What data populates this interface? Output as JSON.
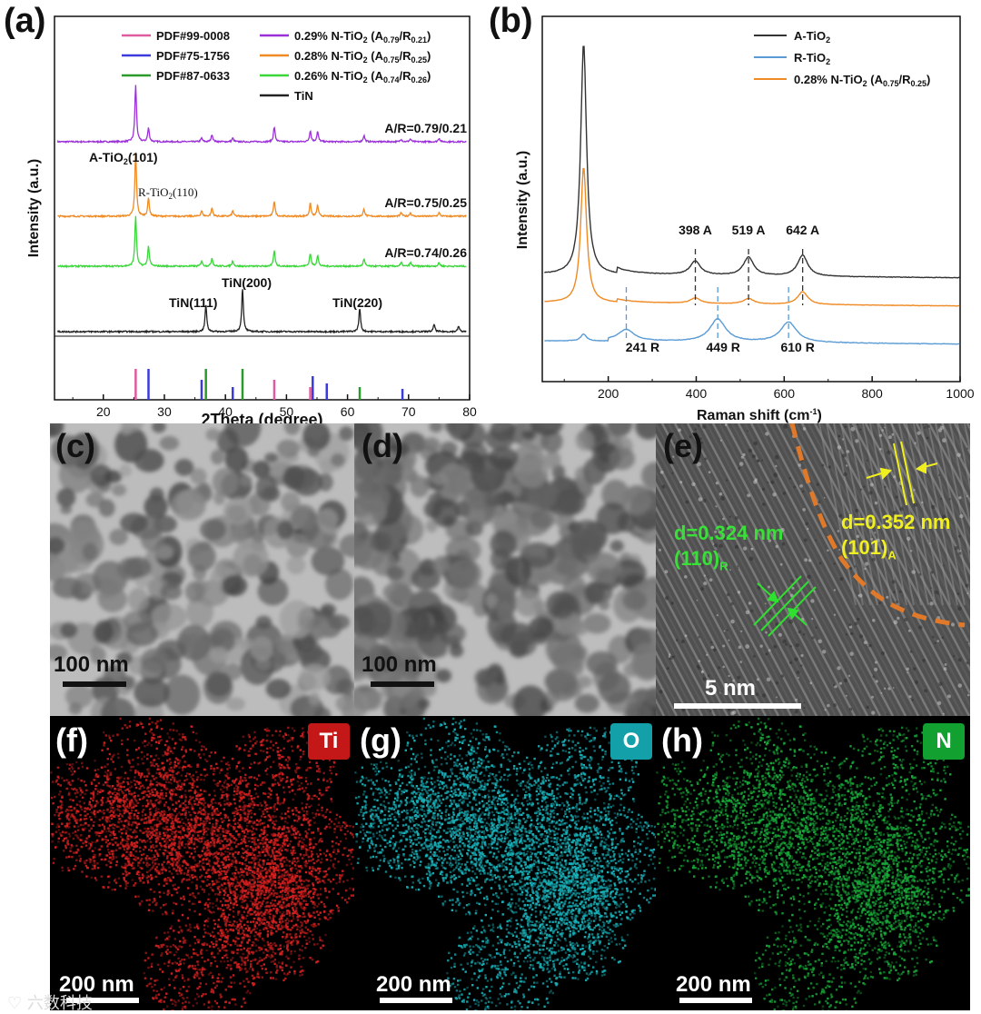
{
  "panels": {
    "a": "(a)",
    "b": "(b)",
    "c": "(c)",
    "d": "(d)",
    "e": "(e)",
    "f": "(f)",
    "g": "(g)",
    "h": "(h)"
  },
  "chart_data": [
    {
      "type": "line",
      "panel": "(a)",
      "xlabel": "2Theta (degree)",
      "ylabel": "Intensity (a.u.)",
      "xlim": [
        12,
        80
      ],
      "xticks": [
        20,
        30,
        40,
        50,
        60,
        70,
        80
      ],
      "legend": [
        {
          "name": "PDF#99-0008",
          "color": "#e05aa0"
        },
        {
          "name": "PDF#75-1756",
          "color": "#3b3bdc"
        },
        {
          "name": "PDF#87-0633",
          "color": "#2a9a2a"
        },
        {
          "name": "0.29% N-TiO",
          "sub2": "2",
          "mid": " (A",
          "sub_a": "0.79",
          "sep": "/R",
          "sub_r": "0.21",
          "end": ")",
          "color": "#9b30d8"
        },
        {
          "name": "0.28% N-TiO",
          "sub2": "2",
          "mid": " (A",
          "sub_a": "0.75",
          "sep": "/R",
          "sub_r": "0.25",
          "end": ")",
          "color": "#f08a24"
        },
        {
          "name": "0.26% N-TiO",
          "sub2": "2",
          "mid": " (A",
          "sub_a": "0.74",
          "sep": "/R",
          "sub_r": "0.26",
          "end": ")",
          "color": "#3ad63a"
        },
        {
          "name": "TiN",
          "color": "#222222"
        }
      ],
      "series": [
        {
          "name": "0.29% N-TiO2",
          "color": "#9b30d8",
          "baseline": 0.0,
          "ratio_label": "A/R=0.79/0.21",
          "peaks": [
            [
              25.3,
              62
            ],
            [
              27.4,
              15
            ],
            [
              36.1,
              4
            ],
            [
              37.8,
              8
            ],
            [
              41.2,
              4
            ],
            [
              48.0,
              16
            ],
            [
              53.9,
              12
            ],
            [
              55.1,
              11
            ],
            [
              62.7,
              7
            ],
            [
              68.8,
              3
            ],
            [
              70.3,
              3
            ],
            [
              75.0,
              4
            ]
          ]
        },
        {
          "name": "0.28% N-TiO2",
          "color": "#f08a24",
          "baseline": 0.0,
          "ratio_label": "A/R=0.75/0.25",
          "peaks": [
            [
              25.3,
              70
            ],
            [
              27.4,
              20
            ],
            [
              36.1,
              6
            ],
            [
              37.8,
              9
            ],
            [
              41.2,
              6
            ],
            [
              48.0,
              17
            ],
            [
              53.9,
              14
            ],
            [
              55.1,
              12
            ],
            [
              62.7,
              8
            ],
            [
              68.8,
              4
            ],
            [
              70.3,
              4
            ],
            [
              75.0,
              4
            ]
          ]
        },
        {
          "name": "0.26% N-TiO2",
          "color": "#3ad63a",
          "baseline": 0.0,
          "ratio_label": "A/R=0.74/0.26",
          "peaks": [
            [
              25.3,
              55
            ],
            [
              27.4,
              22
            ],
            [
              36.1,
              6
            ],
            [
              37.8,
              9
            ],
            [
              41.2,
              6
            ],
            [
              48.0,
              17
            ],
            [
              53.9,
              14
            ],
            [
              55.1,
              12
            ],
            [
              62.7,
              8
            ],
            [
              68.8,
              4
            ],
            [
              70.3,
              4
            ],
            [
              75.0,
              4
            ]
          ]
        },
        {
          "name": "TiN",
          "color": "#222222",
          "baseline": 0.0,
          "peaks": [
            [
              36.8,
              30
            ],
            [
              42.8,
              48
            ],
            [
              62.0,
              26
            ],
            [
              74.2,
              8
            ],
            [
              78.2,
              6
            ]
          ]
        }
      ],
      "reference_sticks": [
        {
          "name": "PDF#99-0008",
          "color": "#e05aa0",
          "positions": [
            25.3,
            48.0,
            53.9
          ]
        },
        {
          "name": "PDF#75-1756",
          "color": "#3b3bdc",
          "positions": [
            27.4,
            36.1,
            41.2,
            54.3,
            56.6,
            69.0
          ]
        },
        {
          "name": "PDF#87-0633",
          "color": "#2a9a2a",
          "positions": [
            36.8,
            42.8,
            62.0
          ]
        }
      ],
      "annotations": {
        "a_tio2": "A-TiO",
        "a_tio2_sub": "2",
        "a_tio2_end": "(101)",
        "r_tio2": "R-TiO",
        "r_tio2_sub": "2",
        "r_tio2_end": "(110)",
        "tin111": "TiN(111)",
        "tin200": "TiN(200)",
        "tin220": "TiN(220)"
      }
    },
    {
      "type": "line",
      "panel": "(b)",
      "xlabel": "Raman shift (cm",
      "xlabel_sup": "-1",
      "xlabel_end": ")",
      "ylabel": "Intensity (a.u.)",
      "xlim": [
        50,
        1000
      ],
      "xticks": [
        200,
        400,
        600,
        800,
        1000
      ],
      "legend": [
        {
          "name": "A-TiO",
          "sub2": "2",
          "color": "#333333"
        },
        {
          "name": "R-TiO",
          "sub2": "2",
          "color": "#5a9bd5"
        },
        {
          "name": "0.28% N-TiO",
          "sub2": "2",
          "mid": " (A",
          "sub_a": "0.75",
          "sep": "/R",
          "sub_r": "0.25",
          "end": ")",
          "color": "#f08a24"
        }
      ],
      "series": [
        {
          "name": "A-TiO2",
          "color": "#333333",
          "peaks": [
            [
              144,
              100
            ],
            [
              398,
              6
            ],
            [
              519,
              8
            ],
            [
              642,
              9
            ]
          ]
        },
        {
          "name": "0.28% N-TiO2",
          "color": "#f08a24",
          "peaks": [
            [
              144,
              75
            ],
            [
              398,
              3
            ],
            [
              519,
              3
            ],
            [
              642,
              7
            ]
          ]
        },
        {
          "name": "R-TiO2",
          "color": "#5a9bd5",
          "peaks": [
            [
              144,
              3
            ],
            [
              241,
              5
            ],
            [
              449,
              10
            ],
            [
              610,
              9
            ]
          ]
        }
      ],
      "peak_labels": [
        "398 A",
        "519 A",
        "642 A",
        "241 R",
        "449 R",
        "610 R"
      ]
    }
  ],
  "micrographs": {
    "c_scale": "100 nm",
    "d_scale": "100 nm",
    "e_scale": "5 nm",
    "e_green_d": "d=0.324 nm",
    "e_green_plane": "(110)",
    "e_green_sub": "R",
    "e_yellow_d": "d=0.352 nm",
    "e_yellow_plane": "(101)",
    "e_yellow_sub": "A"
  },
  "maps": {
    "f_element": "Ti",
    "f_color": "#d42020",
    "f_scale": "200 nm",
    "g_element": "O",
    "g_color": "#18b0b8",
    "g_scale": "200 nm",
    "h_element": "N",
    "h_color": "#18a838",
    "h_scale": "200 nm"
  },
  "watermark": "♡ 六数科技"
}
